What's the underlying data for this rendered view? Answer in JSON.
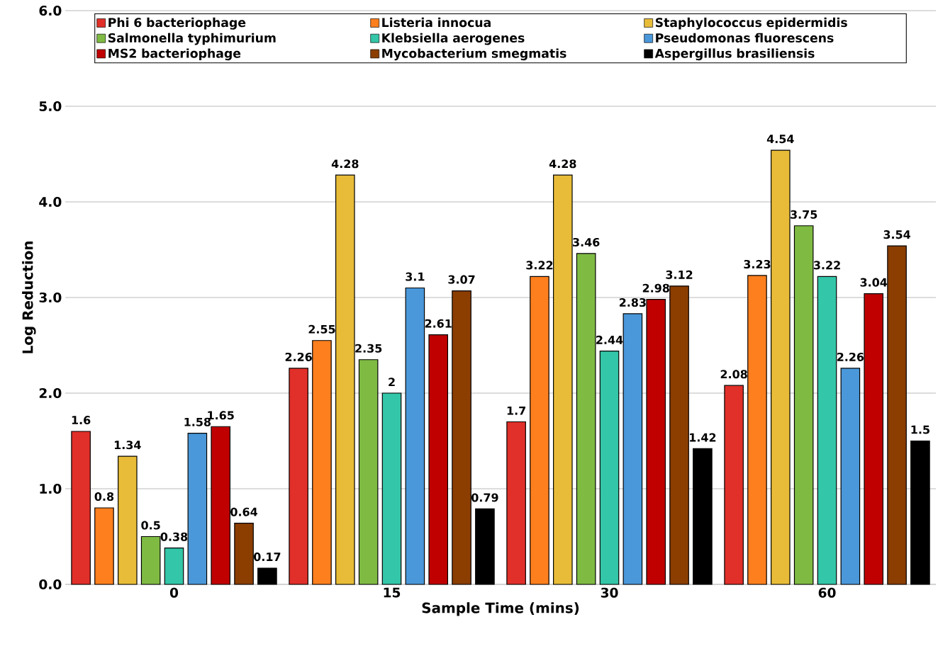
{
  "chart_data": {
    "type": "bar",
    "xlabel": "Sample Time (mins)",
    "ylabel": "Log Reduction",
    "categories": [
      "0",
      "15",
      "30",
      "60"
    ],
    "ylim": [
      0,
      6
    ],
    "yticks": [
      {
        "value": 0,
        "label": "0.0"
      },
      {
        "value": 1,
        "label": "1.0"
      },
      {
        "value": 2,
        "label": "2.0"
      },
      {
        "value": 3,
        "label": "3.0"
      },
      {
        "value": 4,
        "label": "4.0"
      },
      {
        "value": 5,
        "label": "5.0"
      },
      {
        "value": 6,
        "label": "6.0"
      }
    ],
    "grid": "y",
    "legend": "top",
    "series": [
      {
        "name": "Phi 6 bacteriophage",
        "color": "#e03029",
        "values": [
          1.6,
          2.26,
          1.7,
          2.08
        ],
        "value_labels": [
          "1.6",
          "2.26",
          "1.7",
          "2.08"
        ]
      },
      {
        "name": "Listeria innocua",
        "color": "#fd7f1e",
        "values": [
          0.8,
          2.55,
          3.22,
          3.23
        ],
        "value_labels": [
          "0.8",
          "2.55",
          "3.22",
          "3.23"
        ]
      },
      {
        "name": "Staphylococcus epidermidis",
        "color": "#e8bc38",
        "values": [
          1.34,
          4.28,
          4.28,
          4.54
        ],
        "value_labels": [
          "1.34",
          "4.28",
          "4.28",
          "4.54"
        ]
      },
      {
        "name": "Salmonella typhimurium",
        "color": "#7fbb43",
        "values": [
          0.5,
          2.35,
          3.46,
          3.75
        ],
        "value_labels": [
          "0.5",
          "2.35",
          "3.46",
          "3.75"
        ]
      },
      {
        "name": "Klebsiella aerogenes",
        "color": "#33c6a8",
        "values": [
          0.38,
          2,
          2.44,
          3.22
        ],
        "value_labels": [
          "0.38",
          "2",
          "2.44",
          "3.22"
        ]
      },
      {
        "name": "Pseudomonas fluorescens",
        "color": "#4a98da",
        "values": [
          1.58,
          3.1,
          2.83,
          2.26
        ],
        "value_labels": [
          "1.58",
          "3.1",
          "2.83",
          "2.26"
        ]
      },
      {
        "name": "MS2 bacteriophage",
        "color": "#c00000",
        "values": [
          1.65,
          2.61,
          2.98,
          3.04
        ],
        "value_labels": [
          "1.65",
          "2.61",
          "2.98",
          "3.04"
        ]
      },
      {
        "name": "Mycobacterium smegmatis",
        "color": "#8b3e00",
        "values": [
          0.64,
          3.07,
          3.12,
          3.54
        ],
        "value_labels": [
          "0.64",
          "3.07",
          "3.12",
          "3.54"
        ]
      },
      {
        "name": "Aspergillus brasiliensis",
        "color": "#000000",
        "values": [
          0.17,
          0.79,
          1.42,
          1.5
        ],
        "value_labels": [
          "0.17",
          "0.79",
          "1.42",
          "1.5"
        ]
      }
    ]
  }
}
